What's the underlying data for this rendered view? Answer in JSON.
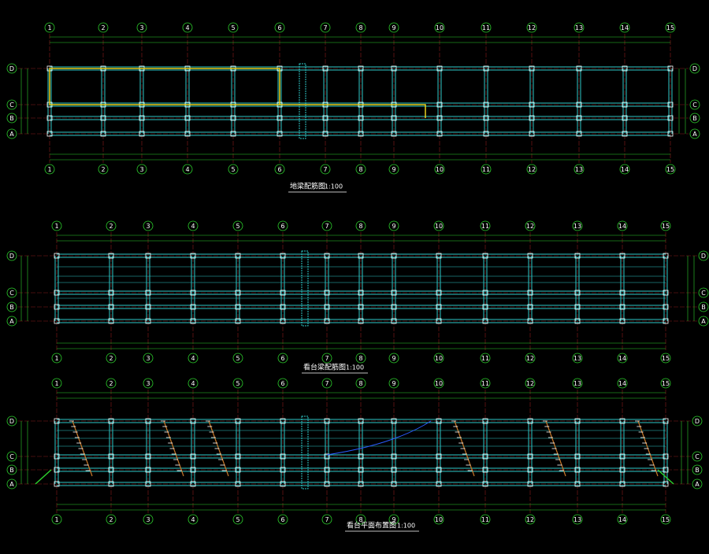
{
  "column_labels": [
    "1",
    "2",
    "3",
    "4",
    "5",
    "6",
    "7",
    "8",
    "9",
    "10",
    "11",
    "12",
    "13",
    "14",
    "15"
  ],
  "row_labels": [
    "A",
    "B",
    "C",
    "D"
  ],
  "plans": [
    {
      "title": "地梁配筋图",
      "scale": "1:100"
    },
    {
      "title": "看台梁配筋图",
      "scale": "1:100"
    },
    {
      "title": "看台平面布置图",
      "scale": "1:100"
    }
  ]
}
